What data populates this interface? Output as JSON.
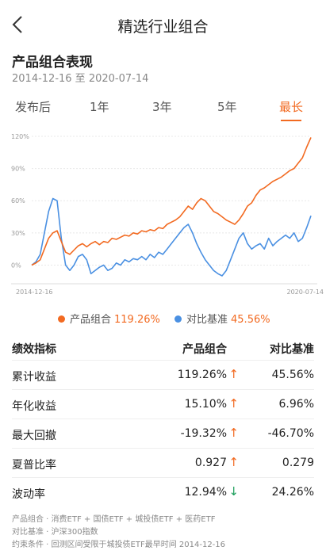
{
  "header": {
    "title": "精选行业组合",
    "back_icon": "chevron-left-icon"
  },
  "section": {
    "title": "产品组合表现",
    "date_range": "2014-12-16 至 2020-07-14"
  },
  "tabs": [
    {
      "label": "发布后",
      "active": false
    },
    {
      "label": "1年",
      "active": false
    },
    {
      "label": "3年",
      "active": false
    },
    {
      "label": "5年",
      "active": false
    },
    {
      "label": "最长",
      "active": true
    }
  ],
  "chart_data": {
    "type": "line",
    "ylim": [
      -10,
      120
    ],
    "yticks": [
      "120%",
      "90%",
      "60%",
      "30%",
      "0%"
    ],
    "ytick_values": [
      120,
      90,
      60,
      30,
      0
    ],
    "xlabels": [
      "2014-12-16",
      "2020-07-14"
    ],
    "grid": true,
    "colors": {
      "portfolio": "#f26a21",
      "benchmark": "#4a90e2"
    },
    "series": [
      {
        "name": "产品组合",
        "values": [
          0,
          2,
          5,
          15,
          25,
          30,
          32,
          22,
          12,
          10,
          14,
          18,
          20,
          17,
          20,
          22,
          19,
          22,
          21,
          25,
          24,
          26,
          28,
          27,
          30,
          29,
          32,
          31,
          33,
          32,
          35,
          34,
          38,
          40,
          42,
          45,
          50,
          55,
          52,
          58,
          62,
          60,
          55,
          50,
          48,
          45,
          42,
          40,
          38,
          42,
          48,
          55,
          58,
          65,
          70,
          72,
          75,
          78,
          80,
          82,
          85,
          88,
          90,
          95,
          100,
          110,
          119
        ]
      },
      {
        "name": "对比基准",
        "values": [
          0,
          3,
          10,
          30,
          50,
          62,
          60,
          25,
          0,
          -5,
          0,
          8,
          10,
          5,
          -8,
          -5,
          -2,
          0,
          -5,
          -3,
          2,
          0,
          5,
          3,
          6,
          5,
          8,
          5,
          10,
          7,
          12,
          10,
          15,
          20,
          25,
          30,
          35,
          38,
          30,
          20,
          12,
          5,
          0,
          -5,
          -8,
          -10,
          -5,
          5,
          15,
          25,
          30,
          20,
          15,
          18,
          20,
          15,
          25,
          18,
          22,
          25,
          28,
          25,
          30,
          22,
          25,
          35,
          46
        ]
      }
    ]
  },
  "legend": {
    "portfolio_label": "产品组合",
    "portfolio_value": "119.26%",
    "benchmark_label": "对比基准",
    "benchmark_value": "45.56%"
  },
  "table": {
    "headers": {
      "metric": "绩效指标",
      "portfolio": "产品组合",
      "benchmark": "对比基准"
    },
    "rows": [
      {
        "metric": "累计收益",
        "portfolio": "119.26%",
        "arrow": "↑",
        "direction": "up",
        "benchmark": "45.56%"
      },
      {
        "metric": "年化收益",
        "portfolio": "15.10%",
        "arrow": "↑",
        "direction": "up",
        "benchmark": "6.96%"
      },
      {
        "metric": "最大回撤",
        "portfolio": "-19.32%",
        "arrow": "↑",
        "direction": "up",
        "benchmark": "-46.70%"
      },
      {
        "metric": "夏普比率",
        "portfolio": "0.927",
        "arrow": "↑",
        "direction": "up",
        "benchmark": "0.279"
      },
      {
        "metric": "波动率",
        "portfolio": "12.94%",
        "arrow": "↓",
        "direction": "down",
        "benchmark": "24.26%"
      }
    ]
  },
  "notes": {
    "composition": "产品组合 · 消费ETF + 国债ETF + 城投债ETF + 医药ETF",
    "benchmark": "对比基准 · 沪深300指数",
    "constraint": "约束条件 · 回测区间受限于城投债ETF最早时间 2014-12-16"
  }
}
